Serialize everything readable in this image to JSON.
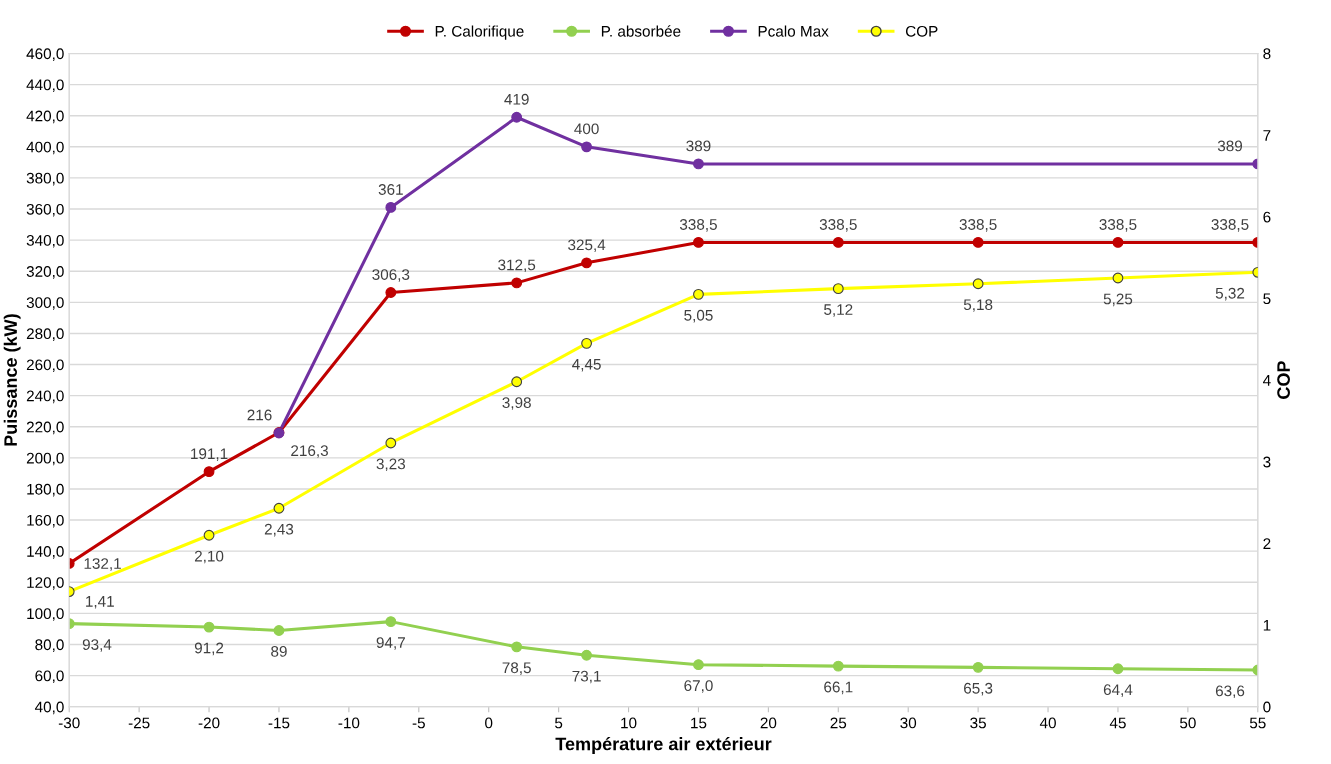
{
  "chart_data": {
    "type": "line",
    "xlabel": "Température air extérieur",
    "ylabel": "Puissance (kW)",
    "y2label": "COP",
    "xlim": [
      -30,
      55
    ],
    "xticks": [
      -30,
      -25,
      -20,
      -15,
      -10,
      -5,
      0,
      5,
      10,
      15,
      20,
      25,
      30,
      35,
      40,
      45,
      50,
      55
    ],
    "ylim": [
      40,
      460
    ],
    "yticks": [
      {
        "value": 40,
        "label": "40,0"
      },
      {
        "value": 60,
        "label": "60,0"
      },
      {
        "value": 80,
        "label": "80,0"
      },
      {
        "value": 100,
        "label": "100,0"
      },
      {
        "value": 120,
        "label": "120,0"
      },
      {
        "value": 140,
        "label": "140,0"
      },
      {
        "value": 160,
        "label": "160,0"
      },
      {
        "value": 180,
        "label": "180,0"
      },
      {
        "value": 200,
        "label": "200,0"
      },
      {
        "value": 220,
        "label": "220,0"
      },
      {
        "value": 240,
        "label": "240,0"
      },
      {
        "value": 260,
        "label": "260,0"
      },
      {
        "value": 280,
        "label": "280,0"
      },
      {
        "value": 300,
        "label": "300,0"
      },
      {
        "value": 320,
        "label": "320,0"
      },
      {
        "value": 340,
        "label": "340,0"
      },
      {
        "value": 360,
        "label": "360,0"
      },
      {
        "value": 380,
        "label": "380,0"
      },
      {
        "value": 400,
        "label": "400,0"
      },
      {
        "value": 420,
        "label": "420,0"
      },
      {
        "value": 440,
        "label": "440,0"
      },
      {
        "value": 460,
        "label": "460,0"
      }
    ],
    "y2lim": [
      0,
      8
    ],
    "y2ticks": [
      0,
      1,
      2,
      3,
      4,
      5,
      6,
      7,
      8
    ],
    "grid": "y",
    "legend": "top",
    "marker": "circle",
    "line_style": "solid",
    "series": [
      {
        "name": "P. Calorifique",
        "color": "#c00000",
        "x": [
          -30,
          -20,
          -15,
          -7,
          2,
          7,
          15,
          25,
          35,
          45,
          55
        ],
        "values": [
          132.1,
          191.1,
          216.3,
          306.3,
          312.5,
          325.4,
          338.5,
          338.5,
          338.5,
          338.5,
          338.5
        ],
        "value_labels": [
          "132,1",
          "191,1",
          "216,3",
          "306,3",
          "312,5",
          "325,4",
          "338,5",
          "338,5",
          "338,5",
          "338,5",
          "338,5"
        ]
      },
      {
        "name": "P. absorbée",
        "color": "#92d050",
        "x": [
          -30,
          -20,
          -15,
          -7,
          2,
          7,
          15,
          25,
          35,
          45,
          55
        ],
        "values": [
          93.4,
          91.2,
          89,
          94.7,
          78.5,
          73.1,
          67.0,
          66.1,
          65.3,
          64.4,
          63.6
        ],
        "value_labels": [
          "93,4",
          "91,2",
          "89",
          "94,7",
          "78,5",
          "73,1",
          "67,0",
          "66,1",
          "65,3",
          "64,4",
          "63,6"
        ]
      },
      {
        "name": "Pcalo Max",
        "color": "#7030a0",
        "x": [
          -15,
          -7,
          2,
          7,
          15,
          55
        ],
        "values": [
          216,
          361,
          419,
          400,
          389,
          389
        ],
        "value_labels": [
          "216",
          "361",
          "419",
          "400",
          "389",
          "389"
        ]
      },
      {
        "name": "COP",
        "color": "#ffff00",
        "axis": "y2",
        "x": [
          -30,
          -20,
          -15,
          -7,
          2,
          7,
          15,
          25,
          35,
          45,
          55
        ],
        "values": [
          1.41,
          2.1,
          2.43,
          3.23,
          3.98,
          4.45,
          5.05,
          5.12,
          5.18,
          5.25,
          5.32
        ],
        "value_labels": [
          "1,41",
          "2,10",
          "2,43",
          "3,23",
          "3,98",
          "4,45",
          "5,05",
          "5,12",
          "5,18",
          "5,25",
          "5,32"
        ]
      }
    ]
  }
}
